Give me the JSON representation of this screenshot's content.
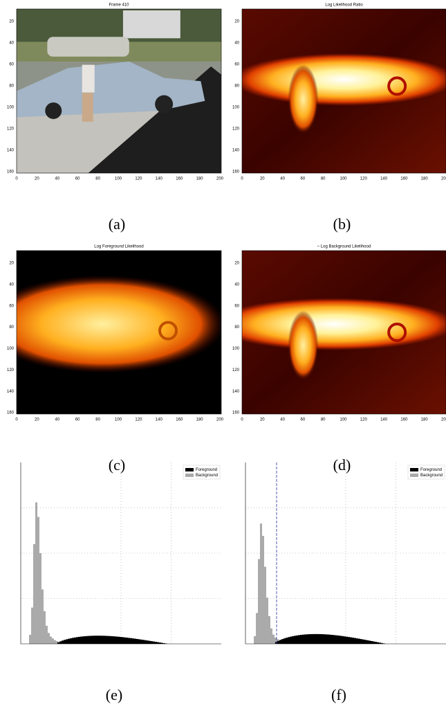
{
  "image_axes": {
    "xticks": [
      0,
      20,
      40,
      60,
      80,
      100,
      120,
      140,
      160,
      180,
      200
    ],
    "yticks": [
      20,
      40,
      60,
      80,
      100,
      120,
      140,
      160
    ]
  },
  "panels": [
    {
      "title": "Frame 410",
      "caption": "(a)"
    },
    {
      "title": "Log Likelihood Ratio",
      "caption": "(b)"
    },
    {
      "title": "Log Foreground Likelihood",
      "caption": "(c)"
    },
    {
      "title": "– Log Background Likelihood",
      "caption": "(d)"
    }
  ],
  "histograms": [
    {
      "caption": "(e)",
      "legend": [
        "Foreground",
        "Background"
      ]
    },
    {
      "caption": "(f)",
      "legend": [
        "Foreground",
        "Background"
      ]
    }
  ]
}
